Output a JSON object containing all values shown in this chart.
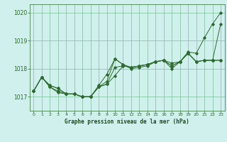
{
  "title": "Graphe pression niveau de la mer (hPa)",
  "xlim": [
    -0.5,
    23.5
  ],
  "ylim": [
    1016.5,
    1020.3
  ],
  "yticks": [
    1017,
    1018,
    1019,
    1020
  ],
  "xticks": [
    0,
    1,
    2,
    3,
    4,
    5,
    6,
    7,
    8,
    9,
    10,
    11,
    12,
    13,
    14,
    15,
    16,
    17,
    18,
    19,
    20,
    21,
    22,
    23
  ],
  "background_color": "#cff0ec",
  "grid_color": "#7bbf99",
  "line_color": "#2d6a2d",
  "series": [
    [
      1017.2,
      1017.7,
      1017.4,
      1017.3,
      1017.1,
      1017.1,
      1017.0,
      1017.0,
      1017.4,
      1017.8,
      1018.35,
      1018.15,
      1018.0,
      1018.05,
      1018.1,
      1018.25,
      1018.3,
      1018.0,
      1018.25,
      1018.6,
      1018.55,
      1019.1,
      1019.6,
      1020.0
    ],
    [
      1017.2,
      1017.7,
      1017.4,
      1017.3,
      1017.1,
      1017.1,
      1017.0,
      1017.0,
      1017.35,
      1017.55,
      1018.35,
      1018.15,
      1018.05,
      1018.1,
      1018.15,
      1018.25,
      1018.3,
      1018.2,
      1018.25,
      1018.55,
      1018.25,
      1018.3,
      1018.3,
      1019.6
    ],
    [
      1017.2,
      1017.7,
      1017.35,
      1017.2,
      1017.1,
      1017.1,
      1017.0,
      1017.0,
      1017.35,
      1017.45,
      1018.05,
      1018.1,
      1018.05,
      1018.1,
      1018.15,
      1018.25,
      1018.3,
      1018.1,
      1018.25,
      1018.55,
      1018.25,
      1018.3,
      1018.3,
      1018.3
    ],
    [
      1017.2,
      1017.7,
      1017.35,
      1017.15,
      1017.1,
      1017.1,
      1017.0,
      1017.0,
      1017.35,
      1017.45,
      1017.75,
      1018.1,
      1018.05,
      1018.1,
      1018.15,
      1018.25,
      1018.3,
      1018.1,
      1018.25,
      1018.55,
      1018.25,
      1018.3,
      1018.3,
      1018.3
    ]
  ]
}
